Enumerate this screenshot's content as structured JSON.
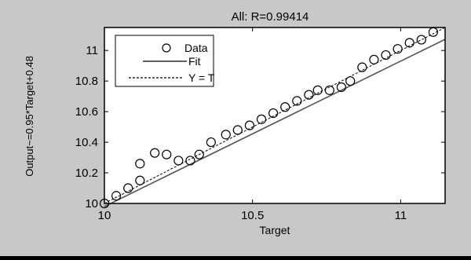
{
  "colors": {
    "figure_bg": "#c8c8c8",
    "axes_bg": "#ffffff",
    "ink": "#000000"
  },
  "chart_data": {
    "type": "scatter",
    "title": "All: R=0.99414",
    "xlabel": "Target",
    "ylabel": "Output~=0.95*Target+0.48",
    "xlim": [
      10,
      11.15
    ],
    "ylim": [
      10,
      11.15
    ],
    "xticks": [
      10,
      10.5,
      11
    ],
    "xtick_labels": [
      "10",
      "10.5",
      "11"
    ],
    "yticks": [
      10,
      10.2,
      10.4,
      10.6,
      10.8,
      11
    ],
    "ytick_labels": [
      "10",
      "10.2",
      "10.4",
      "10.6",
      "10.8",
      "11"
    ],
    "grid": false,
    "legend_position": "top-left",
    "series": [
      {
        "name": "Data",
        "style": "circle-markers",
        "points": [
          [
            10.0,
            10.0
          ],
          [
            10.04,
            10.05
          ],
          [
            10.08,
            10.1
          ],
          [
            10.12,
            10.15
          ],
          [
            10.12,
            10.26
          ],
          [
            10.17,
            10.33
          ],
          [
            10.21,
            10.32
          ],
          [
            10.25,
            10.28
          ],
          [
            10.29,
            10.28
          ],
          [
            10.32,
            10.32
          ],
          [
            10.36,
            10.4
          ],
          [
            10.41,
            10.45
          ],
          [
            10.45,
            10.48
          ],
          [
            10.49,
            10.51
          ],
          [
            10.53,
            10.55
          ],
          [
            10.57,
            10.59
          ],
          [
            10.61,
            10.63
          ],
          [
            10.65,
            10.67
          ],
          [
            10.69,
            10.71
          ],
          [
            10.72,
            10.74
          ],
          [
            10.76,
            10.74
          ],
          [
            10.8,
            10.76
          ],
          [
            10.83,
            10.8
          ],
          [
            10.87,
            10.89
          ],
          [
            10.91,
            10.94
          ],
          [
            10.95,
            10.97
          ],
          [
            10.99,
            11.01
          ],
          [
            11.03,
            11.05
          ],
          [
            11.07,
            11.07
          ],
          [
            11.11,
            11.12
          ]
        ]
      },
      {
        "name": "Fit",
        "style": "solid-line",
        "slope": 0.95,
        "intercept": 0.48
      },
      {
        "name": "Y = T",
        "style": "dashed-line",
        "slope": 1,
        "intercept": 0
      }
    ]
  }
}
